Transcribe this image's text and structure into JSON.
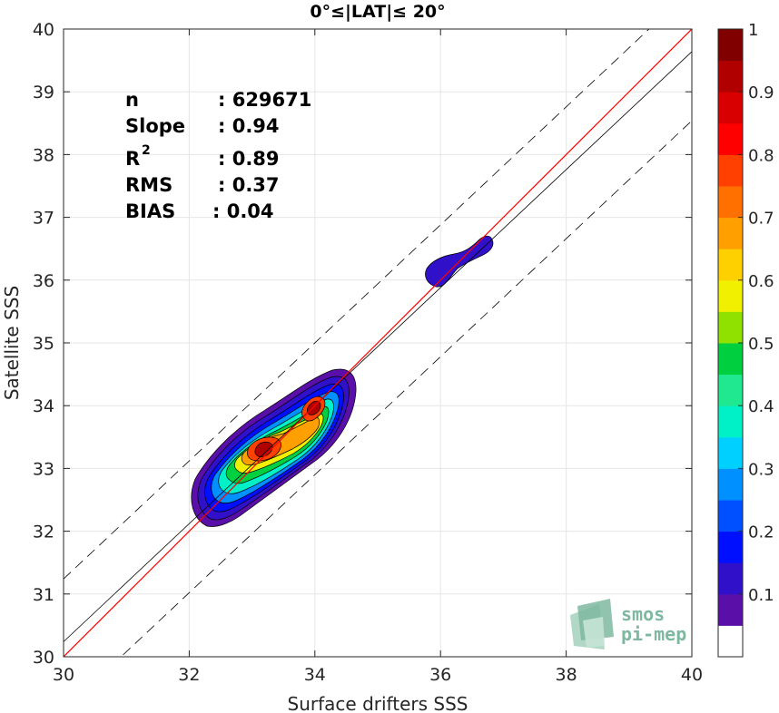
{
  "chart_data": {
    "type": "heatmap",
    "title": "0°≤|LAT|≤ 20°",
    "xlabel": "Surface drifters SSS",
    "ylabel": "Satellite SSS",
    "xlim": [
      30,
      40
    ],
    "ylim": [
      30,
      40
    ],
    "xticks": [
      "30",
      "32",
      "34",
      "36",
      "38",
      "40"
    ],
    "yticks": [
      "30",
      "31",
      "32",
      "33",
      "34",
      "35",
      "36",
      "37",
      "38",
      "39",
      "40"
    ],
    "grid": true,
    "stats": [
      {
        "label": "n",
        "value": ": 629671"
      },
      {
        "label": "Slope",
        "value": ": 0.94"
      },
      {
        "label": "R",
        "sup": "2",
        "value": ": 0.89"
      },
      {
        "label": "RMS",
        "value": ": 0.37"
      },
      {
        "label": "BIAS",
        "value": ": 0.04"
      }
    ],
    "lines": {
      "identity": {
        "slope": 1,
        "intercept": 0,
        "color": "#ff0000"
      },
      "fit": {
        "slope": 0.94,
        "intercept": 2.04,
        "color": "#000000"
      },
      "upper_bound": {
        "slope": 0.94,
        "intercept": 3.04,
        "style": "dashed"
      },
      "lower_bound": {
        "slope": 0.94,
        "intercept": 0.94,
        "style": "dashed"
      }
    },
    "density_clusters": [
      {
        "center_x": 33.3,
        "center_y": 33.25,
        "peak": 1.0
      },
      {
        "center_x": 34.0,
        "center_y": 33.95,
        "peak": 0.95
      },
      {
        "center_x": 36.3,
        "center_y": 36.25,
        "peak": 0.1
      }
    ],
    "colorbar": {
      "range": [
        0,
        1
      ],
      "ticks": [
        "0.1",
        "0.2",
        "0.3",
        "0.4",
        "0.5",
        "0.6",
        "0.7",
        "0.8",
        "0.9",
        "1"
      ],
      "colors": [
        "#ffffff",
        "#5a10a8",
        "#3010c8",
        "#0010ff",
        "#0050ff",
        "#0090ff",
        "#00d0ff",
        "#00f0c8",
        "#20e890",
        "#00d040",
        "#90e000",
        "#f0f000",
        "#ffd000",
        "#ffa000",
        "#ff7000",
        "#ff4000",
        "#ff0000",
        "#d80000",
        "#b00000",
        "#800000"
      ]
    }
  },
  "watermark": {
    "line1": "smos",
    "line2": "pi-mep"
  }
}
